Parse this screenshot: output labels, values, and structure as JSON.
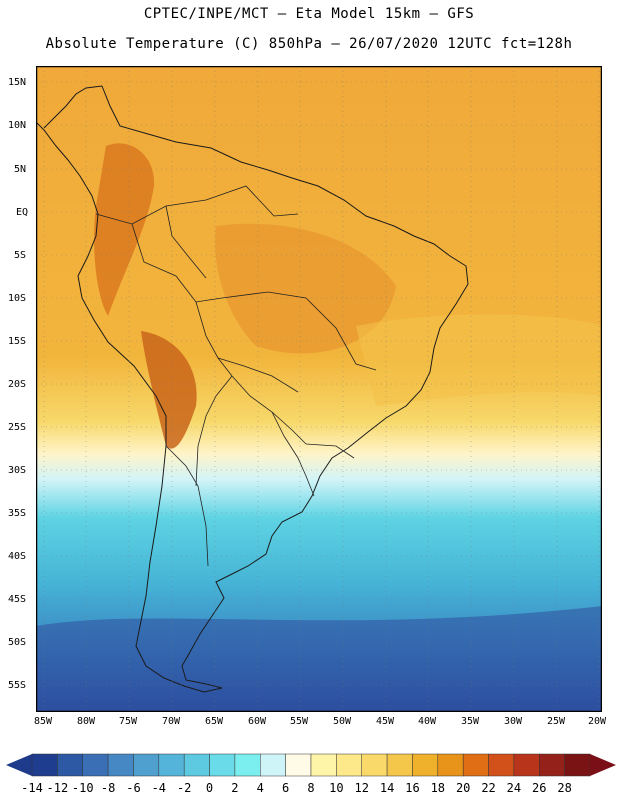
{
  "header": {
    "line1": "CPTEC/INPE/MCT –  Eta Model 15km – GFS",
    "line2": "Absolute Temperature (C) 850hPa – 26/07/2020 12UTC fct=128h"
  },
  "map": {
    "lat_labels": [
      "15N",
      "10N",
      "5N",
      "EQ",
      "5S",
      "10S",
      "15S",
      "20S",
      "25S",
      "30S",
      "35S",
      "40S",
      "45S",
      "50S",
      "55S"
    ],
    "lon_labels": [
      "85W",
      "80W",
      "75W",
      "70W",
      "65W",
      "60W",
      "55W",
      "50W",
      "45W",
      "40W",
      "35W",
      "30W",
      "25W",
      "20W"
    ]
  },
  "colorbar": {
    "tick_labels": [
      "-14",
      "-12",
      "-10",
      "-8",
      "-6",
      "-4",
      "-2",
      "0",
      "2",
      "4",
      "6",
      "8",
      "10",
      "12",
      "14",
      "16",
      "18",
      "20",
      "22",
      "24",
      "26",
      "28"
    ],
    "colors": [
      "#1f3d8f",
      "#2d58a4",
      "#3a6fb6",
      "#4688c4",
      "#4fa0cf",
      "#55b4da",
      "#5ecae2",
      "#6adce9",
      "#7befef",
      "#cff4f8",
      "#fffbe6",
      "#fff5a8",
      "#fde98a",
      "#f9d96a",
      "#f4c64a",
      "#efb02b",
      "#e89319",
      "#df6e14",
      "#d2501a",
      "#b8351c",
      "#95221a",
      "#7a1414"
    ],
    "left_arrow_color": "#1e3a8a",
    "right_arrow_color": "#7a0f17"
  }
}
